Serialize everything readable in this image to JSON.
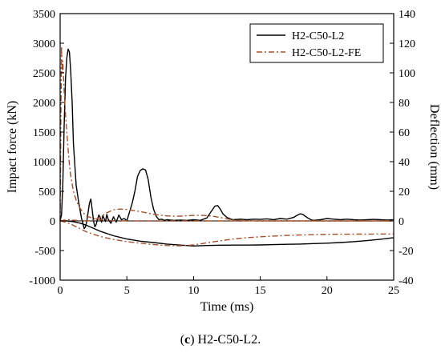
{
  "chart_data": {
    "type": "line",
    "xlabel": "Time (ms)",
    "ylabel": "Impact force (kN)",
    "y2label": "Deflection (mm)",
    "xlim": [
      0,
      25
    ],
    "ylim": [
      -1000,
      3500
    ],
    "y2lim": [
      -40,
      140
    ],
    "xticks": [
      0,
      5,
      10,
      15,
      20,
      25
    ],
    "yticks": [
      -1000,
      -500,
      0,
      500,
      1000,
      1500,
      2000,
      2500,
      3000,
      3500
    ],
    "y2ticks": [
      -40,
      -20,
      0,
      20,
      40,
      60,
      80,
      100,
      120,
      140
    ],
    "legend_position": "top-right",
    "series": [
      {
        "name": "H2-C50-L2",
        "axis": "left",
        "color": "#000000",
        "style": "solid",
        "x": [
          0,
          0.1,
          0.2,
          0.3,
          0.4,
          0.5,
          0.6,
          0.7,
          0.8,
          0.9,
          1.0,
          1.2,
          1.4,
          1.6,
          1.8,
          1.9,
          2.0,
          2.1,
          2.2,
          2.3,
          2.4,
          2.5,
          2.6,
          2.7,
          2.8,
          2.9,
          3.0,
          3.1,
          3.2,
          3.3,
          3.4,
          3.5,
          3.6,
          3.8,
          4.0,
          4.2,
          4.4,
          4.6,
          4.8,
          5.0,
          5.2,
          5.4,
          5.6,
          5.8,
          6.0,
          6.2,
          6.4,
          6.6,
          6.8,
          7.0,
          7.2,
          7.4,
          7.6,
          7.8,
          8.0,
          8.5,
          9.0,
          9.5,
          10.0,
          10.5,
          11.0,
          11.3,
          11.6,
          11.8,
          12.0,
          12.2,
          12.5,
          12.8,
          13.0,
          13.5,
          14.0,
          14.5,
          15.0,
          15.5,
          16.0,
          16.5,
          17.0,
          17.5,
          17.8,
          18.0,
          18.2,
          18.5,
          18.8,
          19.0,
          19.5,
          20.0,
          20.5,
          21.0,
          21.5,
          22.0,
          22.5,
          23.0,
          23.5,
          24.0,
          24.5,
          25.0
        ],
        "values": [
          0,
          100,
          600,
          1600,
          2400,
          2750,
          2900,
          2850,
          2500,
          2000,
          1300,
          600,
          300,
          50,
          -130,
          -100,
          0,
          150,
          300,
          370,
          200,
          0,
          -100,
          -60,
          30,
          100,
          60,
          -20,
          90,
          40,
          -10,
          110,
          30,
          -40,
          70,
          -20,
          100,
          20,
          40,
          0,
          150,
          300,
          500,
          750,
          850,
          880,
          860,
          700,
          400,
          200,
          80,
          20,
          30,
          10,
          20,
          10,
          15,
          10,
          20,
          10,
          50,
          150,
          250,
          260,
          200,
          120,
          60,
          30,
          20,
          30,
          20,
          30,
          25,
          35,
          20,
          40,
          30,
          60,
          100,
          120,
          110,
          60,
          20,
          10,
          20,
          40,
          30,
          20,
          30,
          20,
          15,
          20,
          25,
          20,
          15,
          20
        ]
      },
      {
        "name": "H2-C50-L2-FE",
        "axis": "left",
        "color": "#A0522D",
        "style": "dashdot",
        "x": [
          0,
          0.05,
          0.1,
          0.15,
          0.2,
          0.3,
          0.4,
          0.5,
          0.6,
          0.7,
          0.8,
          1.0,
          1.2,
          1.4,
          1.6,
          1.8,
          2.0,
          2.5,
          3.0,
          3.5,
          4.0,
          5.0,
          6.0,
          7.0,
          8.0,
          9.0,
          10.0,
          15.0,
          20.0,
          25.0
        ],
        "values": [
          0,
          1500,
          2950,
          2500,
          2700,
          2200,
          1800,
          1500,
          1200,
          950,
          750,
          500,
          350,
          250,
          180,
          120,
          80,
          40,
          20,
          10,
          5,
          0,
          0,
          0,
          0,
          0,
          0,
          0,
          0,
          0
        ]
      },
      {
        "name": "",
        "axis": "right",
        "color": "#000000",
        "style": "solid",
        "x": [
          0,
          0.5,
          1.0,
          1.5,
          2.0,
          3.0,
          4.0,
          5.0,
          6.0,
          7.0,
          8.0,
          9.0,
          10.0,
          11.0,
          12.0,
          13.0,
          14.0,
          15.0,
          16.0,
          17.0,
          18.0,
          19.0,
          20.0,
          21.0,
          22.0,
          23.0,
          24.0,
          25.0
        ],
        "values": [
          0,
          0,
          -0.5,
          -1.5,
          -3,
          -7,
          -10,
          -12.2,
          -13.7,
          -14.6,
          -15.6,
          -16.3,
          -16.9,
          -16.6,
          -16.4,
          -16.3,
          -16.3,
          -16.2,
          -16.0,
          -15.8,
          -15.6,
          -15.3,
          -15.0,
          -14.6,
          -14.0,
          -13.3,
          -12.4,
          -11.3
        ]
      },
      {
        "name": "",
        "axis": "right",
        "color": "#A0522D",
        "style": "dashdot",
        "x": [
          0,
          0.5,
          1.0,
          2.0,
          3.0,
          4.0,
          5.0,
          6.0,
          7.0,
          8.0,
          9.0,
          10.0,
          11.0,
          12.0,
          13.0,
          14.0,
          15.0,
          16.0,
          17.0,
          18.0,
          19.0,
          20.0,
          21.0,
          22.0,
          23.0,
          24.0,
          25.0
        ],
        "values": [
          0,
          -1,
          -3,
          -7.5,
          -10.5,
          -12.5,
          -14.0,
          -15.0,
          -16.0,
          -16.6,
          -16.8,
          -16.2,
          -14.8,
          -13.4,
          -12.2,
          -11.3,
          -10.7,
          -10.2,
          -9.8,
          -9.5,
          -9.3,
          -9.1,
          -9.0,
          -8.9,
          -8.9,
          -8.8,
          -8.8
        ]
      },
      {
        "name": "",
        "axis": "right",
        "color": "#A0522D",
        "style": "dashdot",
        "x": [
          0,
          0.3,
          0.6,
          1.0,
          1.5,
          2.0,
          2.5,
          3.0,
          3.5,
          4.0,
          4.5,
          5.0,
          5.5,
          6.0,
          6.5,
          7.0,
          7.5,
          8.0,
          8.5,
          9.0,
          9.5,
          10.0,
          10.5,
          11.0,
          11.5,
          12.0,
          12.5,
          13.0,
          14.0,
          15.0,
          20.0,
          25.0
        ],
        "values": [
          0,
          0.5,
          0.8,
          0.5,
          0.2,
          0,
          0.5,
          2.5,
          5.5,
          7.5,
          8.0,
          7.7,
          7.0,
          6.3,
          5.4,
          4.5,
          3.9,
          3.4,
          3.2,
          3.2,
          3.5,
          3.7,
          3.8,
          3.6,
          3.1,
          2.3,
          1.4,
          0.6,
          0.1,
          0,
          0,
          0
        ]
      }
    ]
  },
  "caption": {
    "label": "c",
    "text": " H2-C50-L2."
  }
}
